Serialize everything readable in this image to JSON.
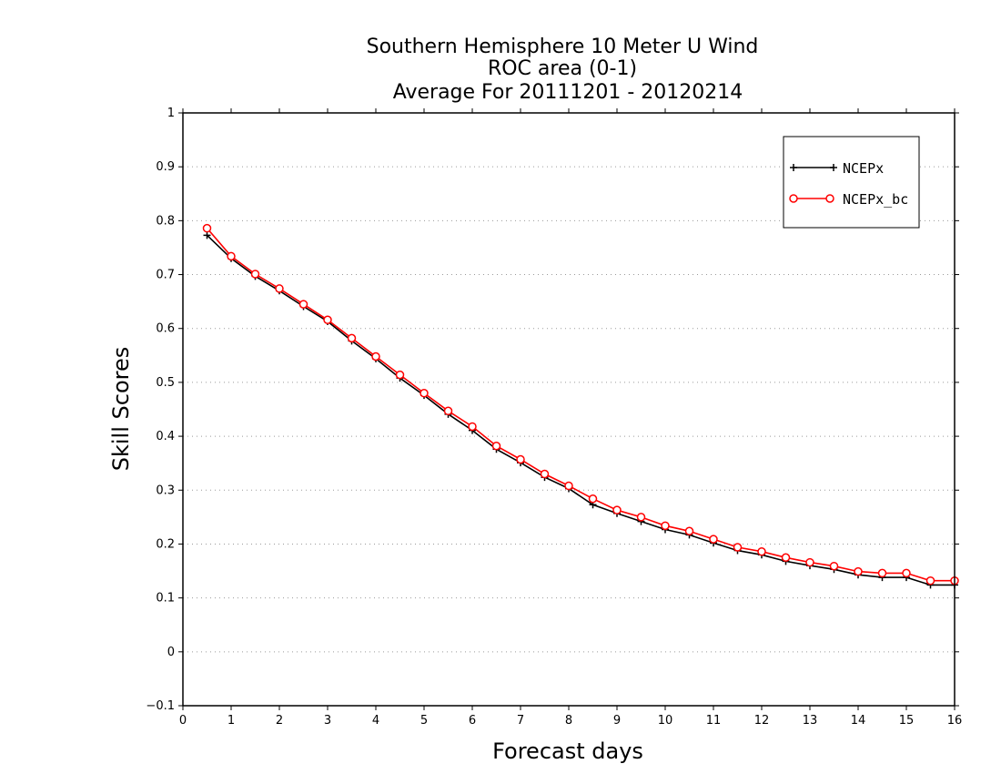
{
  "chart_data": {
    "type": "line",
    "title_lines": [
      "Southern Hemisphere 10 Meter U Wind",
      "ROC area (0-1)",
      "Average For 20111201 - 20120214"
    ],
    "xlabel": "Forecast days",
    "ylabel": "Skill Scores",
    "xlim": [
      0,
      16
    ],
    "ylim": [
      -0.1,
      1
    ],
    "x_ticks": [
      "0",
      "1",
      "2",
      "3",
      "4",
      "5",
      "6",
      "7",
      "8",
      "9",
      "10",
      "11",
      "12",
      "13",
      "14",
      "15",
      "16"
    ],
    "y_ticks": [
      "−0.1",
      "0",
      "0.1",
      "0.2",
      "0.3",
      "0.4",
      "0.5",
      "0.6",
      "0.7",
      "0.8",
      "0.9",
      "1"
    ],
    "grid": "horizontal dotted",
    "legend_position": "top-right",
    "x": [
      0.5,
      1,
      1.5,
      2,
      2.5,
      3,
      3.5,
      4,
      4.5,
      5,
      5.5,
      6,
      6.5,
      7,
      7.5,
      8,
      8.5,
      9,
      9.5,
      10,
      10.5,
      11,
      11.5,
      12,
      12.5,
      13,
      13.5,
      14,
      14.5,
      15,
      15.5,
      16
    ],
    "series": [
      {
        "name": "NCEPx",
        "color": "#000000",
        "marker": "plus",
        "values": [
          0.773,
          0.73,
          0.697,
          0.67,
          0.641,
          0.613,
          0.577,
          0.544,
          0.508,
          0.476,
          0.441,
          0.411,
          0.376,
          0.351,
          0.324,
          0.303,
          0.273,
          0.257,
          0.242,
          0.227,
          0.217,
          0.202,
          0.188,
          0.18,
          0.168,
          0.16,
          0.153,
          0.143,
          0.138,
          0.138,
          0.124,
          0.124
        ]
      },
      {
        "name": "NCEPx_bc",
        "color": "#ff0000",
        "marker": "circle",
        "values": [
          0.786,
          0.734,
          0.701,
          0.674,
          0.645,
          0.616,
          0.582,
          0.548,
          0.514,
          0.48,
          0.447,
          0.418,
          0.382,
          0.357,
          0.33,
          0.308,
          0.284,
          0.263,
          0.25,
          0.234,
          0.224,
          0.209,
          0.194,
          0.186,
          0.175,
          0.166,
          0.159,
          0.149,
          0.146,
          0.146,
          0.132,
          0.132
        ]
      }
    ]
  }
}
